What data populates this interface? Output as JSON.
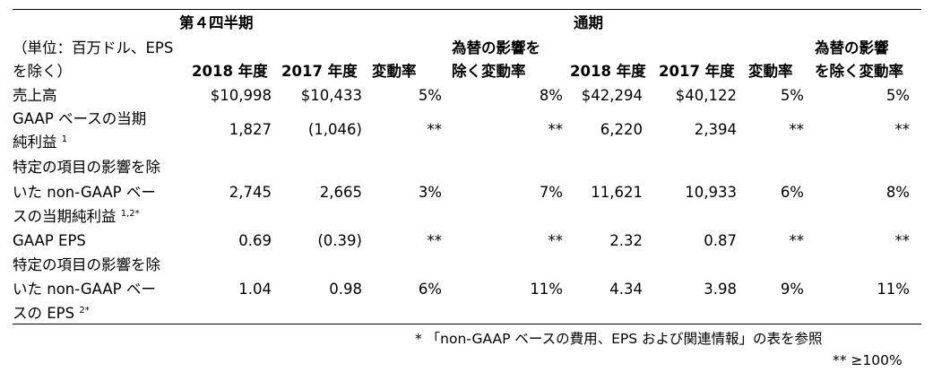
{
  "header": {
    "q4": "第４四半期",
    "full_year": "通期",
    "unit_line1": "（単位：百万ドル、EPS",
    "unit_line2": "を除く）",
    "columns": [
      "2018 年度",
      "2017 年度",
      "変動率",
      "為替の影響を",
      "除く変動率",
      "2018 年度",
      "2017 年度",
      "変動率",
      "為替の影響",
      "を除く変動率"
    ]
  },
  "rows": [
    {
      "label_lines": [
        "売上高"
      ],
      "sup": "",
      "values": [
        "$10,998",
        "$10,433",
        "5%",
        "8%",
        "$42,294",
        "$40,122",
        "5%",
        "5%"
      ]
    },
    {
      "label_lines": [
        "GAAP ベースの当期",
        "純利益"
      ],
      "sup": "1",
      "values": [
        "1,827",
        "(1,046)",
        "**",
        "**",
        "6,220",
        "2,394",
        "**",
        "**"
      ]
    },
    {
      "label_lines": [
        "特定の項目の影響を除",
        "いた non-GAAP ベー",
        "スの当期純利益"
      ],
      "sup": "1,2*",
      "values": [
        "2,745",
        "2,665",
        "3%",
        "7%",
        "11,621",
        "10,933",
        "6%",
        "8%"
      ]
    },
    {
      "label_lines": [
        "GAAP EPS"
      ],
      "sup": "",
      "values": [
        "0.69",
        "(0.39)",
        "**",
        "**",
        "2.32",
        "0.87",
        "**",
        "**"
      ]
    },
    {
      "label_lines": [
        "特定の項目の影響を除",
        "いた non-GAAP ベー",
        "スの EPS"
      ],
      "sup": "2*",
      "values": [
        "1.04",
        "0.98",
        "6%",
        "11%",
        "4.34",
        "3.98",
        "9%",
        "11%"
      ]
    }
  ],
  "footnotes": {
    "note1": "* 「non-GAAP ベースの費用、EPS および関連情報」の表を参照",
    "note2": "** ≥100%"
  }
}
